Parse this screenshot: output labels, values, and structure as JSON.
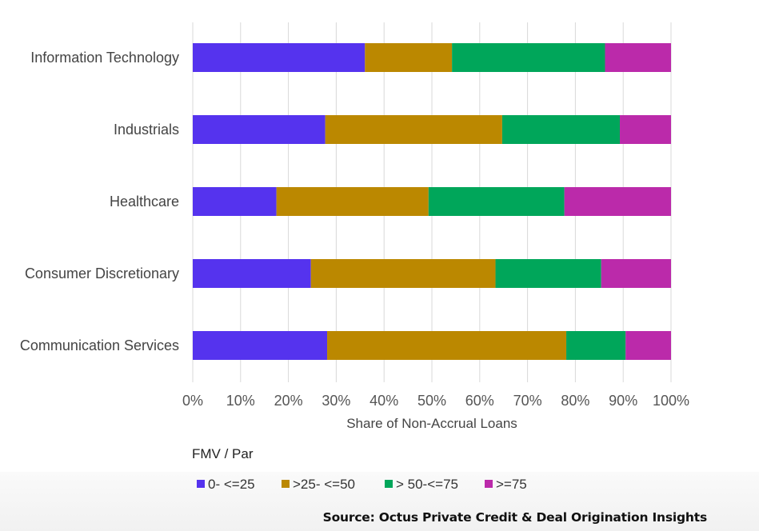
{
  "chart_data": {
    "type": "bar",
    "orientation": "horizontal",
    "stacked": true,
    "categories": [
      "Information Technology",
      "Industrials",
      "Healthcare",
      "Consumer Discretionary",
      "Communication Services"
    ],
    "series": [
      {
        "name": "0- <=25",
        "color": "#5533ee",
        "values": [
          36,
          27.7,
          17.5,
          24.7,
          28.1
        ]
      },
      {
        "name": ">25- <=50",
        "color": "#bb8800",
        "values": [
          18.2,
          37,
          31.8,
          38.6,
          50
        ]
      },
      {
        "name": "> 50-<=75",
        "color": "#00a65a",
        "values": [
          32,
          24.6,
          28.4,
          22.1,
          12.4
        ]
      },
      {
        "name": ">=75",
        "color": "#bb2aaa",
        "values": [
          13.8,
          10.7,
          22.3,
          14.6,
          9.5
        ]
      }
    ],
    "xlabel": "Share of Non-Accrual Loans",
    "xlim": [
      0,
      100
    ],
    "xticks": [
      "0%",
      "10%",
      "20%",
      "30%",
      "40%",
      "50%",
      "60%",
      "70%",
      "80%",
      "90%",
      "100%"
    ],
    "grid": true,
    "legend_title": "FMV / Par",
    "legend_position": "bottom"
  },
  "source": "Source: Octus Private Credit & Deal Origination Insights"
}
